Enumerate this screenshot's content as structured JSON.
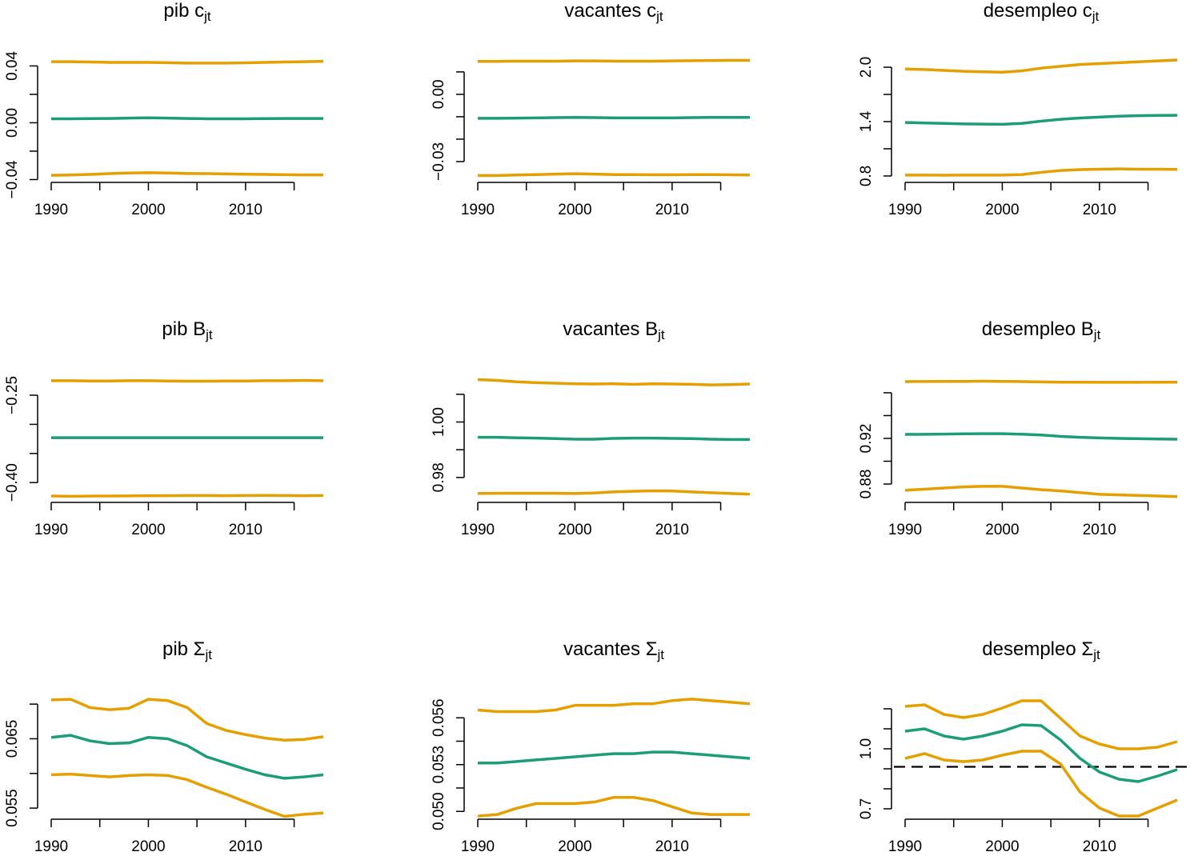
{
  "chart_data": [
    {
      "type": "line",
      "title": "pib c",
      "title_subscript": "jt",
      "x": [
        1990,
        1992,
        1994,
        1996,
        1998,
        2000,
        2002,
        2004,
        2006,
        2008,
        2010,
        2012,
        2014,
        2016,
        2018
      ],
      "xlim": [
        1990,
        2018
      ],
      "xticks": [
        1990,
        2000,
        2010
      ],
      "xminor_ticks": [
        1995,
        2005,
        2015
      ],
      "ylim": [
        -0.042,
        0.047
      ],
      "yticks": [
        {
          "value": -0.04,
          "label": "−0.04"
        },
        {
          "value": 0,
          "label": "0.00"
        },
        0.04
      ],
      "yminor_ticks": [
        -0.02,
        0.02
      ],
      "series": [
        {
          "color": "#e69f00",
          "values": [
            0.043,
            0.043,
            0.0428,
            0.0425,
            0.0425,
            0.0425,
            0.0423,
            0.042,
            0.042,
            0.042,
            0.0422,
            0.0425,
            0.0428,
            0.043,
            0.0433
          ]
        },
        {
          "color": "#1b9e77",
          "values": [
            0.0028,
            0.0028,
            0.0029,
            0.003,
            0.0033,
            0.0035,
            0.0033,
            0.003,
            0.0028,
            0.0028,
            0.0028,
            0.0029,
            0.003,
            0.003,
            0.003
          ]
        },
        {
          "color": "#e69f00",
          "values": [
            -0.037,
            -0.0368,
            -0.0364,
            -0.0358,
            -0.0354,
            -0.0352,
            -0.0354,
            -0.0357,
            -0.0358,
            -0.036,
            -0.0362,
            -0.0364,
            -0.0366,
            -0.0367,
            -0.0367
          ]
        }
      ]
    },
    {
      "type": "line",
      "title": "vacantes c",
      "title_subscript": "jt",
      "x": [
        1990,
        1992,
        1994,
        1996,
        1998,
        2000,
        2002,
        2004,
        2006,
        2008,
        2010,
        2012,
        2014,
        2016,
        2018
      ],
      "xlim": [
        1990,
        2018
      ],
      "xticks": [
        1990,
        2000,
        2010
      ],
      "xminor_ticks": [
        1995,
        2005,
        2015
      ],
      "ylim": [
        -0.0393,
        0.0171
      ],
      "yticks": [
        {
          "value": -0.03,
          "label": "−0.03"
        },
        {
          "value": 0,
          "label": "0.00"
        }
      ],
      "yminor_ticks": [
        -0.02,
        -0.01,
        0.01
      ],
      "series": [
        {
          "color": "#e69f00",
          "values": [
            0.0147,
            0.0147,
            0.0148,
            0.0148,
            0.0148,
            0.0149,
            0.0149,
            0.0148,
            0.0148,
            0.0148,
            0.0149,
            0.015,
            0.0151,
            0.0152,
            0.0152
          ]
        },
        {
          "color": "#1b9e77",
          "values": [
            -0.0107,
            -0.0107,
            -0.0106,
            -0.0105,
            -0.0104,
            -0.0103,
            -0.0104,
            -0.0105,
            -0.0105,
            -0.0105,
            -0.0105,
            -0.0104,
            -0.0103,
            -0.0103,
            -0.0103
          ]
        },
        {
          "color": "#e69f00",
          "values": [
            -0.0362,
            -0.0362,
            -0.036,
            -0.0358,
            -0.0356,
            -0.0354,
            -0.0356,
            -0.0358,
            -0.0358,
            -0.0359,
            -0.0359,
            -0.0358,
            -0.0358,
            -0.0359,
            -0.036
          ]
        }
      ]
    },
    {
      "type": "line",
      "title": "desempleo c",
      "title_subscript": "jt",
      "x": [
        1990,
        1992,
        1994,
        1996,
        1998,
        2000,
        2002,
        2004,
        2006,
        2008,
        2010,
        2012,
        2014,
        2016,
        2018
      ],
      "xlim": [
        1990,
        2018
      ],
      "xticks": [
        1990,
        2000,
        2010
      ],
      "xminor_ticks": [
        1995,
        2005,
        2015
      ],
      "ylim": [
        0.729,
        2.124
      ],
      "yticks": [
        0.8,
        1.4,
        {
          "value": 2,
          "label": "2.0"
        }
      ],
      "yminor_ticks": [
        1.1,
        1.7
      ],
      "series": [
        {
          "color": "#e69f00",
          "values": [
            1.98,
            1.975,
            1.965,
            1.955,
            1.95,
            1.945,
            1.96,
            1.99,
            2.01,
            2.03,
            2.04,
            2.05,
            2.06,
            2.07,
            2.08
          ]
        },
        {
          "color": "#1b9e77",
          "values": [
            1.39,
            1.385,
            1.38,
            1.375,
            1.372,
            1.37,
            1.38,
            1.405,
            1.425,
            1.44,
            1.45,
            1.46,
            1.465,
            1.468,
            1.47
          ]
        },
        {
          "color": "#e69f00",
          "values": [
            0.81,
            0.81,
            0.808,
            0.81,
            0.81,
            0.81,
            0.815,
            0.84,
            0.86,
            0.87,
            0.875,
            0.878,
            0.875,
            0.875,
            0.872
          ]
        }
      ]
    },
    {
      "type": "line",
      "title": "pib B",
      "title_subscript": "jt",
      "x": [
        1990,
        1992,
        1994,
        1996,
        1998,
        2000,
        2002,
        2004,
        2006,
        2008,
        2010,
        2012,
        2014,
        2016,
        2018
      ],
      "xlim": [
        1990,
        2018
      ],
      "xticks": [
        1990,
        2000,
        2010
      ],
      "xminor_ticks": [
        1995,
        2005,
        2015
      ],
      "ylim": [
        -0.434,
        -0.217
      ],
      "yticks": [
        {
          "value": -0.4,
          "label": "−0.40"
        },
        {
          "value": -0.25,
          "label": "−0.25"
        }
      ],
      "yminor_ticks": [
        -0.35,
        -0.3
      ],
      "series": [
        {
          "color": "#e69f00",
          "values": [
            -0.225,
            -0.225,
            -0.2255,
            -0.2255,
            -0.225,
            -0.225,
            -0.2255,
            -0.226,
            -0.226,
            -0.2255,
            -0.2255,
            -0.225,
            -0.225,
            -0.2245,
            -0.225
          ]
        },
        {
          "color": "#1b9e77",
          "values": [
            -0.323,
            -0.323,
            -0.323,
            -0.323,
            -0.323,
            -0.323,
            -0.323,
            -0.323,
            -0.323,
            -0.323,
            -0.323,
            -0.323,
            -0.323,
            -0.323,
            -0.323
          ]
        },
        {
          "color": "#e69f00",
          "values": [
            -0.423,
            -0.4235,
            -0.4232,
            -0.423,
            -0.4228,
            -0.4225,
            -0.4225,
            -0.4222,
            -0.4222,
            -0.4225,
            -0.4222,
            -0.422,
            -0.4222,
            -0.4225,
            -0.4222
          ]
        }
      ]
    },
    {
      "type": "line",
      "title": "vacantes B",
      "title_subscript": "jt",
      "x": [
        1990,
        1992,
        1994,
        1996,
        1998,
        2000,
        2002,
        2004,
        2006,
        2008,
        2010,
        2012,
        2014,
        2016,
        2018
      ],
      "xlim": [
        1990,
        2018
      ],
      "xticks": [
        1990,
        2000,
        2010
      ],
      "xminor_ticks": [
        1995,
        2005,
        2015
      ],
      "ylim": [
        0.971,
        1.0166
      ],
      "yticks": [
        0.98,
        {
          "value": 1,
          "label": "1.00"
        }
      ],
      "yminor_ticks": [
        0.99,
        1.01
      ],
      "series": [
        {
          "color": "#e69f00",
          "values": [
            1.0153,
            1.015,
            1.0145,
            1.0142,
            1.014,
            1.0138,
            1.0137,
            1.0138,
            1.0136,
            1.0138,
            1.0137,
            1.0136,
            1.0134,
            1.0135,
            1.0137
          ]
        },
        {
          "color": "#1b9e77",
          "values": [
            0.9945,
            0.9945,
            0.9943,
            0.9942,
            0.994,
            0.9938,
            0.9938,
            0.9941,
            0.9942,
            0.9942,
            0.9941,
            0.994,
            0.9938,
            0.9937,
            0.9937
          ]
        },
        {
          "color": "#e69f00",
          "values": [
            0.9742,
            0.9743,
            0.9743,
            0.9743,
            0.9743,
            0.9742,
            0.9744,
            0.9748,
            0.975,
            0.9752,
            0.9751,
            0.9748,
            0.9745,
            0.9742,
            0.974
          ]
        }
      ]
    },
    {
      "type": "line",
      "title": "desempleo B",
      "title_subscript": "jt",
      "x": [
        1990,
        1992,
        1994,
        1996,
        1998,
        2000,
        2002,
        2004,
        2006,
        2008,
        2010,
        2012,
        2014,
        2016,
        2018
      ],
      "xlim": [
        1990,
        2018
      ],
      "xticks": [
        1990,
        2000,
        2010
      ],
      "xminor_ticks": [
        1995,
        2005,
        2015
      ],
      "ylim": [
        0.8639,
        0.9747
      ],
      "yticks": [
        0.88,
        0.92
      ],
      "yminor_ticks": [
        0.9,
        0.94,
        0.96
      ],
      "series": [
        {
          "color": "#e69f00",
          "values": [
            0.9698,
            0.9699,
            0.97,
            0.97,
            0.9701,
            0.97,
            0.9698,
            0.9695,
            0.9693,
            0.9693,
            0.9692,
            0.9692,
            0.9692,
            0.9693,
            0.9693
          ]
        },
        {
          "color": "#1b9e77",
          "values": [
            0.9235,
            0.9236,
            0.9238,
            0.924,
            0.9241,
            0.9241,
            0.9237,
            0.923,
            0.9218,
            0.921,
            0.9204,
            0.92,
            0.9197,
            0.9195,
            0.9193
          ]
        },
        {
          "color": "#e69f00",
          "values": [
            0.8745,
            0.8755,
            0.8765,
            0.8775,
            0.878,
            0.878,
            0.8765,
            0.875,
            0.874,
            0.8725,
            0.871,
            0.8705,
            0.87,
            0.8695,
            0.869
          ]
        }
      ]
    },
    {
      "type": "line",
      "title": "pib Σ",
      "title_subscript": "jt",
      "x": [
        1990,
        1992,
        1994,
        1996,
        1998,
        2000,
        2002,
        2004,
        2006,
        2008,
        2010,
        2012,
        2014,
        2016,
        2018
      ],
      "xlim": [
        1990,
        2018
      ],
      "xticks": [
        1990,
        2000,
        2010
      ],
      "xminor_ticks": [
        1995,
        2005,
        2015
      ],
      "ylim": [
        0.0534,
        0.0714
      ],
      "yticks": [
        0.055,
        0.065
      ],
      "yminor_ticks": [
        0.06,
        0.07
      ],
      "series": [
        {
          "color": "#e69f00",
          "values": [
            0.0706,
            0.0707,
            0.0695,
            0.0692,
            0.0694,
            0.0707,
            0.0705,
            0.0695,
            0.0672,
            0.0662,
            0.0656,
            0.0651,
            0.0648,
            0.0649,
            0.0653
          ]
        },
        {
          "color": "#1b9e77",
          "values": [
            0.0652,
            0.0655,
            0.0647,
            0.0643,
            0.0644,
            0.0652,
            0.065,
            0.064,
            0.0624,
            0.0615,
            0.0606,
            0.0598,
            0.0593,
            0.0595,
            0.0598
          ]
        },
        {
          "color": "#e69f00",
          "values": [
            0.0598,
            0.0599,
            0.0597,
            0.0595,
            0.0597,
            0.0598,
            0.0597,
            0.0591,
            0.058,
            0.057,
            0.0559,
            0.0548,
            0.0538,
            0.0541,
            0.0543
          ]
        }
      ]
    },
    {
      "type": "line",
      "title": "vacantes Σ",
      "title_subscript": "jt",
      "x": [
        1990,
        1992,
        1994,
        1996,
        1998,
        2000,
        2002,
        2004,
        2006,
        2008,
        2010,
        2012,
        2014,
        2016,
        2018
      ],
      "xlim": [
        1990,
        2018
      ],
      "xticks": [
        1990,
        2000,
        2010
      ],
      "xminor_ticks": [
        1995,
        2005,
        2015
      ],
      "ylim": [
        0.0495,
        0.0575
      ],
      "yticks": [
        {
          "value": 0.05,
          "label": "0.050"
        },
        0.053,
        0.056
      ],
      "yminor_ticks": [
        0.0515,
        0.0545
      ],
      "series": [
        {
          "color": "#e69f00",
          "values": [
            0.0565,
            0.0564,
            0.0564,
            0.0564,
            0.0565,
            0.0568,
            0.0568,
            0.0568,
            0.0569,
            0.0569,
            0.0571,
            0.0572,
            0.0571,
            0.057,
            0.0569
          ]
        },
        {
          "color": "#1b9e77",
          "values": [
            0.0531,
            0.0531,
            0.0532,
            0.0533,
            0.0534,
            0.0535,
            0.0536,
            0.0537,
            0.0537,
            0.0538,
            0.0538,
            0.0537,
            0.0536,
            0.0535,
            0.0534
          ]
        },
        {
          "color": "#e69f00",
          "values": [
            0.0497,
            0.0498,
            0.0502,
            0.0505,
            0.0505,
            0.0505,
            0.0506,
            0.0509,
            0.0509,
            0.0507,
            0.0503,
            0.0499,
            0.0498,
            0.0498,
            0.0498
          ]
        }
      ]
    },
    {
      "type": "line",
      "title": "desempleo Σ",
      "title_subscript": "jt",
      "x": [
        1990,
        1992,
        1994,
        1996,
        1998,
        2000,
        2002,
        2004,
        2006,
        2008,
        2010,
        2012,
        2014,
        2016,
        2018
      ],
      "xlim": [
        1990,
        2018
      ],
      "xticks": [
        1990,
        2000,
        2010
      ],
      "xminor_ticks": [
        1995,
        2005,
        2015
      ],
      "ylim": [
        0.648,
        1.272
      ],
      "yticks": [
        0.7,
        {
          "value": 1,
          "label": "1.0"
        }
      ],
      "yminor_ticks": [
        0.8,
        0.9,
        1.1,
        1.2
      ],
      "hline": 0.91,
      "series": [
        {
          "color": "#e69f00",
          "values": [
            1.212,
            1.22,
            1.172,
            1.156,
            1.172,
            1.204,
            1.24,
            1.24,
            1.152,
            1.064,
            1.024,
            1.0,
            1.0,
            1.008,
            1.036
          ]
        },
        {
          "color": "#1b9e77",
          "values": [
            1.088,
            1.1,
            1.064,
            1.048,
            1.064,
            1.088,
            1.12,
            1.116,
            1.044,
            0.952,
            0.884,
            0.848,
            0.836,
            0.864,
            0.896
          ]
        },
        {
          "color": "#e69f00",
          "values": [
            0.952,
            0.976,
            0.944,
            0.936,
            0.944,
            0.968,
            0.988,
            0.988,
            0.924,
            0.784,
            0.704,
            0.664,
            0.664,
            0.704,
            0.744
          ]
        }
      ]
    }
  ]
}
